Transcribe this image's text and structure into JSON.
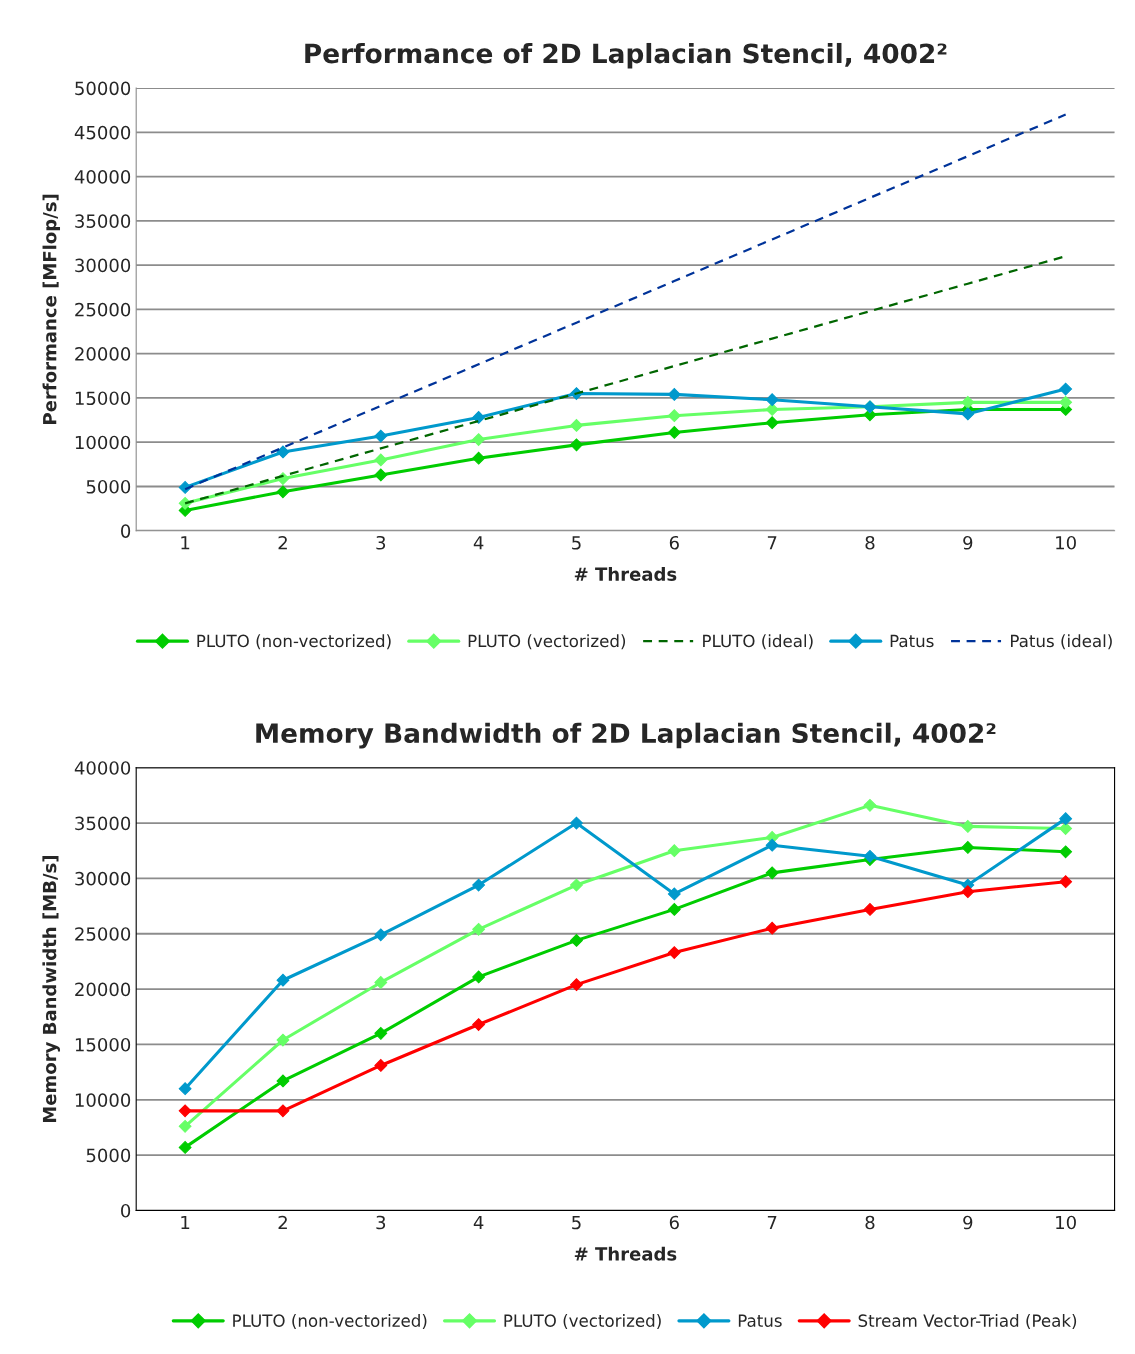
{
  "chart_data": [
    {
      "type": "line",
      "title": "Performance of 2D Laplacian Stencil, 4002²",
      "xlabel": "# Threads",
      "ylabel": "Performance [MFlop/s]",
      "categories": [
        "1",
        "2",
        "3",
        "4",
        "5",
        "6",
        "7",
        "8",
        "9",
        "10"
      ],
      "ylim": [
        0,
        50000
      ],
      "yticks": [
        0,
        5000,
        10000,
        15000,
        20000,
        25000,
        30000,
        35000,
        40000,
        45000,
        50000
      ],
      "grid": "y",
      "legend": "bottom",
      "series": [
        {
          "name": "PLUTO (non-vectorized)",
          "color": "#00cc00",
          "marker": "diamond",
          "line_style": "solid",
          "values": [
            2300,
            4400,
            6300,
            8200,
            9700,
            11100,
            12200,
            13100,
            13700,
            13700
          ]
        },
        {
          "name": "PLUTO (vectorized)",
          "color": "#66ff66",
          "marker": "diamond",
          "line_style": "solid",
          "values": [
            3100,
            5900,
            8000,
            10300,
            11900,
            13000,
            13700,
            14000,
            14500,
            14500
          ]
        },
        {
          "name": "PLUTO (ideal)",
          "color": "#006600",
          "marker": "none",
          "line_style": "dashed",
          "values": [
            3100,
            6200,
            9300,
            12400,
            15500,
            18600,
            21700,
            24800,
            27900,
            31000
          ]
        },
        {
          "name": "Patus",
          "color": "#0099cc",
          "marker": "diamond",
          "line_style": "solid",
          "values": [
            4900,
            8900,
            10700,
            12800,
            15500,
            15400,
            14800,
            14000,
            13200,
            16000
          ]
        },
        {
          "name": "Patus (ideal)",
          "color": "#003399",
          "marker": "none",
          "line_style": "dashed",
          "values": [
            4700,
            9400,
            14100,
            18800,
            23500,
            28200,
            32900,
            37600,
            42300,
            47000
          ]
        }
      ]
    },
    {
      "type": "line",
      "title": "Memory Bandwidth of 2D Laplacian Stencil, 4002²",
      "xlabel": "# Threads",
      "ylabel": "Memory Bandwidth [MB/s]",
      "categories": [
        "1",
        "2",
        "3",
        "4",
        "5",
        "6",
        "7",
        "8",
        "9",
        "10"
      ],
      "ylim": [
        0,
        40000
      ],
      "yticks": [
        0,
        5000,
        10000,
        15000,
        20000,
        25000,
        30000,
        35000,
        40000
      ],
      "grid": "y",
      "legend": "bottom",
      "series": [
        {
          "name": "PLUTO (non-vectorized)",
          "color": "#00cc00",
          "marker": "diamond",
          "line_style": "solid",
          "values": [
            5700,
            11700,
            16000,
            21100,
            24400,
            27200,
            30500,
            31700,
            32800,
            32400
          ]
        },
        {
          "name": "PLUTO (vectorized)",
          "color": "#66ff66",
          "marker": "diamond",
          "line_style": "solid",
          "values": [
            7600,
            15400,
            20600,
            25400,
            29400,
            32500,
            33700,
            36600,
            34700,
            34500
          ]
        },
        {
          "name": "Patus",
          "color": "#0099cc",
          "marker": "diamond",
          "line_style": "solid",
          "values": [
            11000,
            20800,
            24900,
            29400,
            35000,
            28600,
            33000,
            32000,
            29400,
            35400
          ]
        },
        {
          "name": "Stream Vector-Triad (Peak)",
          "color": "#ff0000",
          "marker": "diamond",
          "line_style": "solid",
          "values": [
            9000,
            9000,
            13100,
            16800,
            20400,
            23300,
            25500,
            27200,
            28800,
            29700
          ]
        }
      ]
    }
  ]
}
